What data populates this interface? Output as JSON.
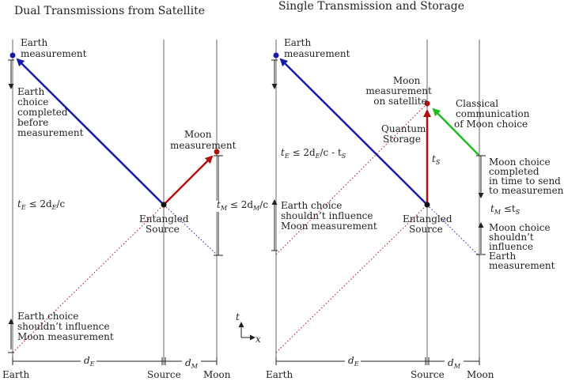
{
  "left_panel": {
    "title": "Dual Transmissions from Satellite",
    "earth_measurement": [
      "Earth",
      "measurement"
    ],
    "earth_choice": [
      "Earth",
      "choice",
      "completed",
      "before",
      "measurement"
    ],
    "moon_measurement": [
      "Moon",
      "measurement"
    ],
    "source_label": [
      "Entangled",
      "Source"
    ],
    "tE": {
      "t": "t",
      "sub": "E",
      "rest": " ≤ 2d",
      "sub2": "E",
      "tail": "/c"
    },
    "tM": {
      "t": "t",
      "sub": "M",
      "rest": " ≤ 2d",
      "sub2": "M",
      "tail": "/c"
    },
    "earth_influence": [
      "Earth choice",
      "shouldn’t influence",
      "Moon measurement"
    ],
    "axis": {
      "earth": "Earth",
      "source": "Source",
      "moon": "Moon",
      "dE": "d",
      "dE_sub": "E",
      "dM": "d",
      "dM_sub": "M"
    }
  },
  "right_panel": {
    "title": "Single Transmission and Storage",
    "earth_measurement": [
      "Earth",
      "measurement"
    ],
    "moon_on_satellite": [
      "Moon",
      "measurement",
      "on satellite"
    ],
    "classical": [
      "Classical",
      "communication",
      "of Moon choice"
    ],
    "quantum": [
      "Quantum",
      "Storage"
    ],
    "tS": {
      "t": "t",
      "sub": "S"
    },
    "tE": {
      "t": "t",
      "sub": "E",
      "rest": " ≤ 2d",
      "sub2": "E",
      "tail": "/c - t",
      "sub3": "S"
    },
    "tM": {
      "t": "t",
      "sub": "M",
      "rest": " ≤t",
      "sub2": "S"
    },
    "moon_choice": [
      "Moon choice",
      "completed",
      "in time to send",
      "to measurement"
    ],
    "earth_influence": [
      "Earth choice",
      "shouldn’t influence",
      "Moon measurement"
    ],
    "source_label": [
      "Entangled",
      "Source"
    ],
    "moon_influence": [
      "Moon choice",
      "shouldn’t",
      "influence",
      "Earth",
      "measurement"
    ],
    "axis": {
      "earth": "Earth",
      "source": "Source",
      "moon": "Moon",
      "dE": "d",
      "dE_sub": "E",
      "dM": "d",
      "dM_sub": "M"
    }
  },
  "coord_axes": {
    "t": "t",
    "x": "x"
  },
  "colors": {
    "blue": "#1a1aa8",
    "red": "#b01010",
    "green": "#22bb22",
    "line": "#555555"
  }
}
